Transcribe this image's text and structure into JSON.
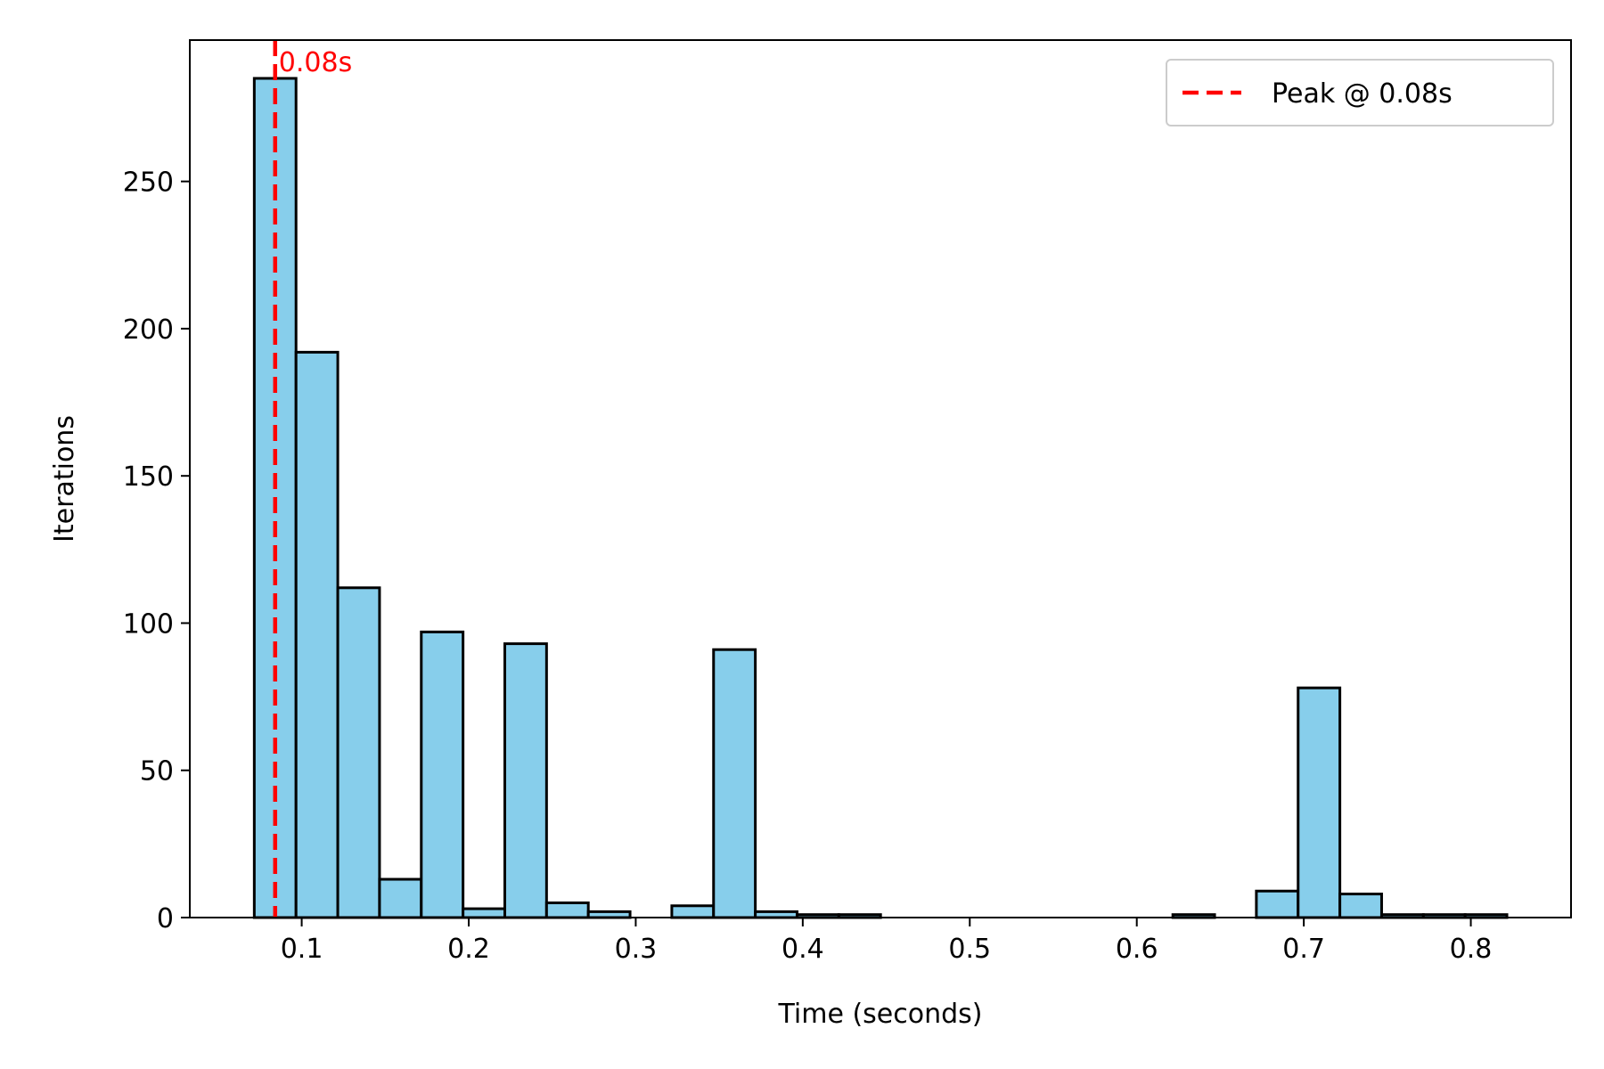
{
  "chart_data": {
    "type": "bar",
    "subtype": "histogram",
    "xlabel": "Time (seconds)",
    "ylabel": "Iterations",
    "xlim": [
      0.033,
      0.86
    ],
    "ylim": [
      0,
      298
    ],
    "x_ticks": [
      0.1,
      0.2,
      0.3,
      0.4,
      0.5,
      0.6,
      0.7,
      0.8
    ],
    "y_ticks": [
      0,
      50,
      100,
      150,
      200,
      250
    ],
    "bar_color": "#87CEEB",
    "bar_edge_color": "#000000",
    "bin_start": 0.0716,
    "bin_width": 0.025,
    "counts": [
      285,
      192,
      112,
      13,
      97,
      3,
      93,
      5,
      2,
      0,
      4,
      91,
      2,
      1,
      1,
      0,
      0,
      0,
      0,
      0,
      0,
      0,
      1,
      0,
      9,
      78,
      8,
      1,
      1,
      1
    ],
    "peak_line": {
      "x": 0.0841,
      "color": "#FF0000",
      "style": "dashed",
      "label": "0.08s",
      "legend_label": "Peak @ 0.08s"
    },
    "legend_position": "upper-right",
    "grid": false
  }
}
